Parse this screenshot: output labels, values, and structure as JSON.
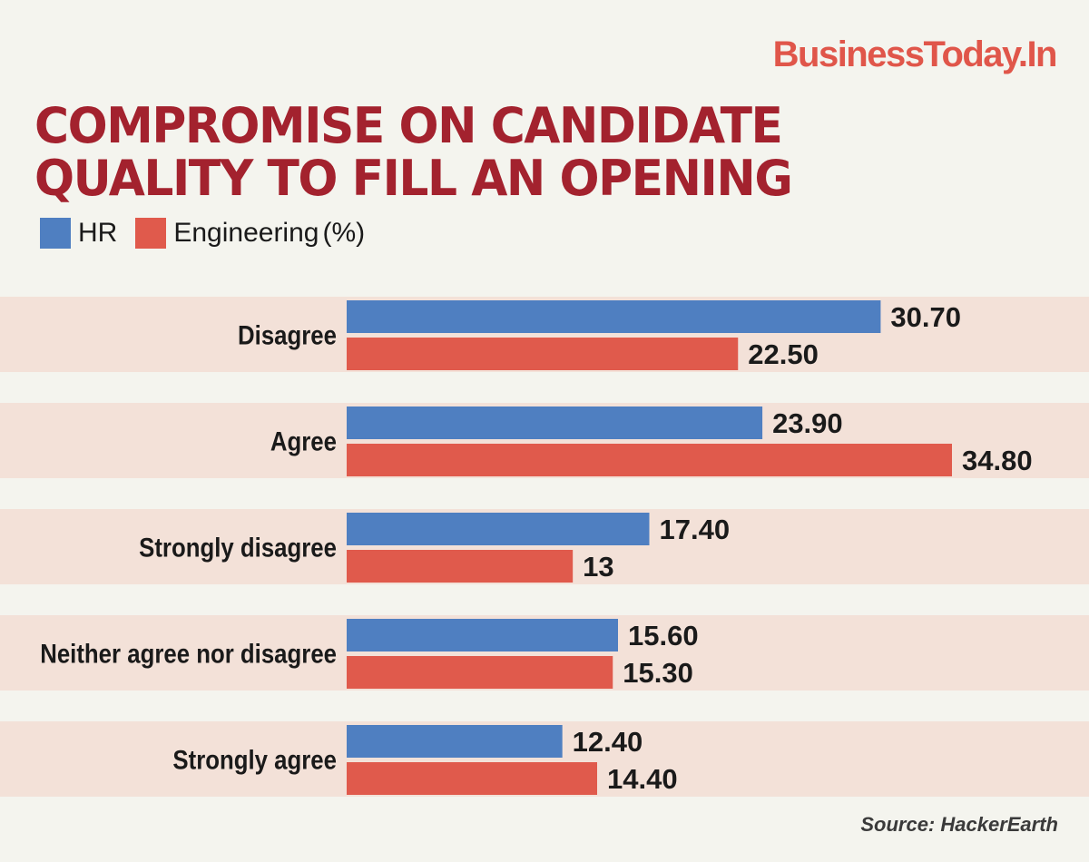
{
  "brand": "BusinessToday.In",
  "title_lines": [
    "COMPROMISE ON CANDIDATE",
    "QUALITY TO FILL AN OPENING"
  ],
  "legend_unit": "(%)",
  "source": "Source: HackerEarth",
  "colors": {
    "hr": "#4f7fc1",
    "engineering": "#e05a4c",
    "band": "#f3e1d8",
    "title": "#a3222e",
    "brand": "#e0564a"
  },
  "chart_data": {
    "type": "bar",
    "orientation": "horizontal",
    "categories": [
      "Disagree",
      "Agree",
      "Strongly disagree",
      "Neither agree nor disagree",
      "Strongly agree"
    ],
    "series": [
      {
        "name": "HR",
        "values": [
          30.7,
          23.9,
          17.4,
          15.6,
          12.4
        ],
        "labels": [
          "30.70",
          "23.90",
          "17.40",
          "15.60",
          "12.40"
        ]
      },
      {
        "name": "Engineering",
        "values": [
          22.5,
          34.8,
          13,
          15.3,
          14.4
        ],
        "labels": [
          "22.50",
          "34.80",
          "13",
          "15.30",
          "14.40"
        ]
      }
    ],
    "xlim": [
      0,
      34.8
    ],
    "legend": "top-left"
  }
}
